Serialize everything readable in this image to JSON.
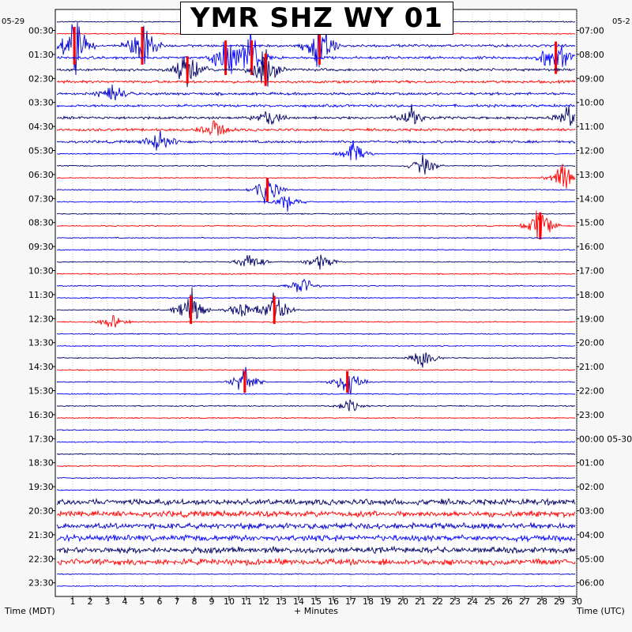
{
  "title": "YMR SHZ WY 01",
  "left_date": "05-29",
  "right_date": "05-2",
  "x_axis_label": "+ Minutes",
  "left_axis_title": "Time (MDT)",
  "right_axis_title": "Time (UTC)",
  "colors": {
    "line_colors": [
      "#000066",
      "#0000cc",
      "#ff0000",
      "#0000ff"
    ],
    "grid": "#aaaaaa"
  },
  "chart_data": {
    "type": "helicorder",
    "title": "YMR SHZ WY 01",
    "xlabel": "+ Minutes",
    "xlim": [
      0,
      30
    ],
    "x_ticks": [
      1,
      2,
      3,
      4,
      5,
      6,
      7,
      8,
      9,
      10,
      11,
      12,
      13,
      14,
      15,
      16,
      17,
      18,
      19,
      20,
      21,
      22,
      23,
      24,
      25,
      26,
      27,
      28,
      29,
      30
    ],
    "lines_per_label": 2,
    "row_count": 48,
    "left_labels": [
      "00:30",
      "01:30",
      "02:30",
      "03:30",
      "04:30",
      "05:30",
      "06:30",
      "07:30",
      "08:30",
      "09:30",
      "10:30",
      "11:30",
      "12:30",
      "13:30",
      "14:30",
      "15:30",
      "16:30",
      "17:30",
      "18:30",
      "19:30",
      "20:30",
      "21:30",
      "22:30",
      "23:30"
    ],
    "right_labels": [
      "07:00",
      "08:00",
      "09:00",
      "10:00",
      "11:00",
      "12:00",
      "13:00",
      "14:00",
      "15:00",
      "16:00",
      "17:00",
      "18:00",
      "19:00",
      "20:00",
      "21:00",
      "22:00",
      "23:00",
      "00:00 05-30",
      "01:00",
      "02:00",
      "03:00",
      "04:00",
      "05:00",
      "06:00"
    ],
    "events": [
      {
        "row": 2,
        "minute": 1.1,
        "amp": 3.5,
        "clip": true
      },
      {
        "row": 2,
        "minute": 5.0,
        "amp": 3.5,
        "clip": true
      },
      {
        "row": 2,
        "minute": 15.2,
        "amp": 3.5,
        "clip": true
      },
      {
        "row": 3,
        "minute": 9.8,
        "amp": 3.2,
        "clip": true
      },
      {
        "row": 3,
        "minute": 11.3,
        "amp": 3.2,
        "clip": true
      },
      {
        "row": 3,
        "minute": 28.8,
        "amp": 3.0,
        "clip": true
      },
      {
        "row": 4,
        "minute": 12.1,
        "amp": 3.0,
        "clip": true
      },
      {
        "row": 4,
        "minute": 7.6,
        "amp": 2.5,
        "clip": true
      },
      {
        "row": 6,
        "minute": 3.3,
        "amp": 1.4,
        "clip": false
      },
      {
        "row": 8,
        "minute": 12.3,
        "amp": 1.2,
        "clip": false
      },
      {
        "row": 8,
        "minute": 20.5,
        "amp": 1.3,
        "clip": false
      },
      {
        "row": 8,
        "minute": 29.5,
        "amp": 1.3,
        "clip": false
      },
      {
        "row": 9,
        "minute": 9.2,
        "amp": 1.3,
        "clip": false
      },
      {
        "row": 10,
        "minute": 6.0,
        "amp": 1.6,
        "clip": false
      },
      {
        "row": 11,
        "minute": 17.2,
        "amp": 1.4,
        "clip": false
      },
      {
        "row": 12,
        "minute": 21.2,
        "amp": 1.4,
        "clip": false
      },
      {
        "row": 13,
        "minute": 29.2,
        "amp": 1.6,
        "clip": false
      },
      {
        "row": 14,
        "minute": 12.2,
        "amp": 2.2,
        "clip": true
      },
      {
        "row": 15,
        "minute": 13.3,
        "amp": 1.0,
        "clip": false
      },
      {
        "row": 17,
        "minute": 27.9,
        "amp": 2.5,
        "clip": true
      },
      {
        "row": 20,
        "minute": 11.2,
        "amp": 1.3,
        "clip": false
      },
      {
        "row": 20,
        "minute": 15.3,
        "amp": 1.3,
        "clip": false
      },
      {
        "row": 22,
        "minute": 14.2,
        "amp": 1.3,
        "clip": false
      },
      {
        "row": 24,
        "minute": 10.7,
        "amp": 1.2,
        "clip": false
      },
      {
        "row": 24,
        "minute": 7.8,
        "amp": 2.6,
        "clip": true
      },
      {
        "row": 24,
        "minute": 12.6,
        "amp": 2.6,
        "clip": true
      },
      {
        "row": 25,
        "minute": 3.3,
        "amp": 0.9,
        "clip": false
      },
      {
        "row": 28,
        "minute": 21.2,
        "amp": 1.3,
        "clip": false
      },
      {
        "row": 30,
        "minute": 10.9,
        "amp": 2.0,
        "clip": true
      },
      {
        "row": 30,
        "minute": 16.8,
        "amp": 2.0,
        "clip": true
      },
      {
        "row": 32,
        "minute": 16.9,
        "amp": 0.8,
        "clip": false
      }
    ],
    "note": "Each row is one 30-minute trace; events are seismic signal bursts in minutes after row start."
  }
}
